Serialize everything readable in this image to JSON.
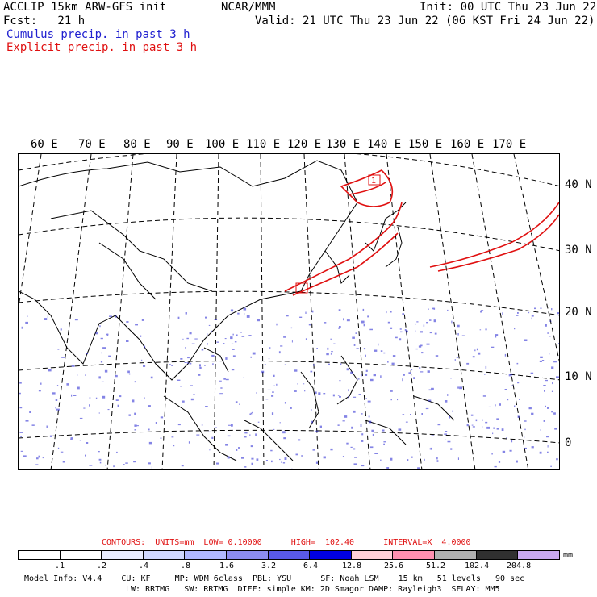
{
  "header": {
    "line1_left": "ACCLIP 15km ARW-GFS init",
    "line1_center": "NCAR/MMM",
    "line1_right": "Init: 00 UTC Thu 23 Jun 22",
    "line2_left": "Fcst:   21 h",
    "line2_right": "Valid: 21 UTC Thu 23 Jun 22 (06 KST Fri 24 Jun 22)",
    "legend_cumulus": "Cumulus precip. in past 3 h",
    "legend_explicit": "Explicit precip. in past 3 h"
  },
  "map": {
    "lon_labels": [
      "60 E",
      "70 E",
      "80 E",
      "90 E",
      "100 E",
      "110 E",
      "120 E",
      "130 E",
      "140 E",
      "150 E",
      "160 E",
      "170 E"
    ],
    "lat_labels": [
      "40 N",
      "30 N",
      "20 N",
      "10 N",
      "0"
    ],
    "box_label": "1",
    "colors": {
      "cumulus": "#2020d0",
      "explicit": "#e01010",
      "coast": "#000000",
      "grid": "#000000"
    }
  },
  "contours": {
    "text": "CONTOURS:  UNITS=mm  LOW= 0.10000      HIGH=  102.40      INTERVAL=X  4.0000"
  },
  "colorbar": {
    "labels": [
      ".1",
      ".2",
      ".4",
      ".8",
      "1.6",
      "3.2",
      "6.4",
      "12.8",
      "25.6",
      "51.2",
      "102.4",
      "204.8"
    ],
    "unit": "mm",
    "colors": [
      "#ffffff",
      "#ffffff",
      "#e8ecff",
      "#d0d8ff",
      "#b0b8ff",
      "#8c8cf0",
      "#5a5ae8",
      "#0000e0",
      "#ffd0d8",
      "#ff90b0",
      "#b0b0b0",
      "#303030",
      "#c8a8f0"
    ]
  },
  "footer": {
    "line1": "Model Info: V4.4    CU: KF     MP: WDM 6class  PBL: YSU      SF: Noah LSM    15 km   51 levels   90 sec",
    "line2": "LW: RRTMG   SW: RRTMG  DIFF: simple KM: 2D Smagor DAMP: Rayleigh3  SFLAY: MM5"
  }
}
